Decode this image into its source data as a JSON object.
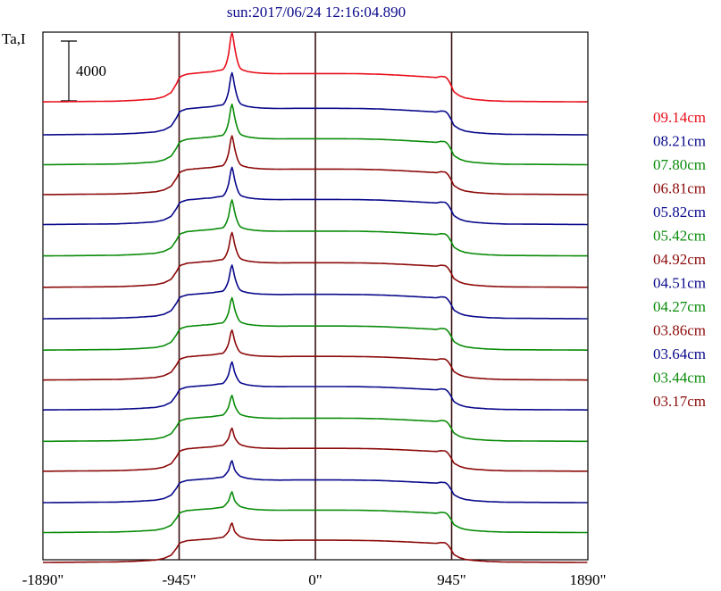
{
  "chart_data": {
    "type": "line",
    "title": "sun:2017/06/24 12:16:04.890",
    "ylabel": "Ta,I",
    "scale_bar_label": "4000",
    "scale_bar_value": 4000,
    "xlim": [
      -1890,
      1890
    ],
    "x_ticks": [
      {
        "value": -1890,
        "label": "-1890\""
      },
      {
        "value": -945,
        "label": "-945\""
      },
      {
        "value": 0,
        "label": "0\""
      },
      {
        "value": 945,
        "label": "945\""
      },
      {
        "value": 1890,
        "label": "1890\""
      }
    ],
    "vertical_lines": [
      -945,
      0,
      945
    ],
    "grid": false,
    "legend_position": "right",
    "profile_template": {
      "x": [
        -1890,
        -1380,
        -1240,
        -1110,
        -1050,
        -1000,
        -960,
        -945,
        -930,
        -890,
        -840,
        -780,
        -720,
        -680,
        -640,
        -600,
        -580,
        -560,
        -520,
        -470,
        -420,
        -360,
        -250,
        -150,
        0,
        150,
        300,
        450,
        600,
        700,
        780,
        840,
        870,
        900,
        920,
        935,
        945,
        960,
        1000,
        1040,
        1100,
        1200,
        1320,
        1890
      ],
      "y": [
        0,
        40,
        90,
        170,
        290,
        520,
        1060,
        1330,
        1430,
        1550,
        1590,
        1640,
        1680,
        1740,
        1790,
        2150,
        2700,
        2050,
        1820,
        1690,
        1630,
        1590,
        1570,
        1580,
        1580,
        1580,
        1570,
        1540,
        1480,
        1430,
        1390,
        1360,
        1420,
        1400,
        1250,
        1020,
        860,
        560,
        340,
        220,
        140,
        70,
        30,
        0
      ]
    },
    "series": [
      {
        "label": "09.14cm",
        "color": "#e8101c",
        "offset": 14500,
        "amplitude": 1.2,
        "peak_boost": 1.35
      },
      {
        "label": "08.21cm",
        "color": "#0a0a8c",
        "offset": 12300,
        "amplitude": 1.12,
        "peak_boost": 1.1
      },
      {
        "label": "07.80cm",
        "color": "#0a8c0a",
        "offset": 10300,
        "amplitude": 1.1,
        "peak_boost": 1.05
      },
      {
        "label": "06.81cm",
        "color": "#8c0a0a",
        "offset": 8300,
        "amplitude": 1.08,
        "peak_boost": 1.0
      },
      {
        "label": "05.82cm",
        "color": "#0a0a8c",
        "offset": 6300,
        "amplitude": 1.06,
        "peak_boost": 0.95
      },
      {
        "label": "05.42cm",
        "color": "#0a8c0a",
        "offset": 4200,
        "amplitude": 1.05,
        "peak_boost": 0.9
      },
      {
        "label": "04.92cm",
        "color": "#8c0a0a",
        "offset": 2100,
        "amplitude": 1.04,
        "peak_boost": 0.85
      },
      {
        "label": "04.51cm",
        "color": "#0a0a8c",
        "offset": 0,
        "amplitude": 1.03,
        "peak_boost": 0.8
      },
      {
        "label": "04.27cm",
        "color": "#0a8c0a",
        "offset": -2100,
        "amplitude": 1.02,
        "peak_boost": 0.75
      },
      {
        "label": "03.86cm",
        "color": "#8c0a0a",
        "offset": -4100,
        "amplitude": 1.0,
        "peak_boost": 0.65
      },
      {
        "label": "03.64cm",
        "color": "#0a0a8c",
        "offset": -6100,
        "amplitude": 0.99,
        "peak_boost": 0.55
      },
      {
        "label": "03.44cm",
        "color": "#0a8c0a",
        "offset": -8200,
        "amplitude": 0.98,
        "peak_boost": 0.45
      },
      {
        "label": "03.17cm",
        "color": "#8c0a0a",
        "offset": -10200,
        "amplitude": 0.97,
        "peak_boost": 0.3
      }
    ],
    "extra_profiles": [
      {
        "color": "#0a0a8c",
        "offset": -12300,
        "amplitude": 0.96,
        "peak_boost": 0.25
      },
      {
        "color": "#0a8c0a",
        "offset": -14300,
        "amplitude": 0.95,
        "peak_boost": 0.2
      },
      {
        "color": "#8c0a0a",
        "offset": -16300,
        "amplitude": 0.94,
        "peak_boost": 0.15
      }
    ]
  }
}
